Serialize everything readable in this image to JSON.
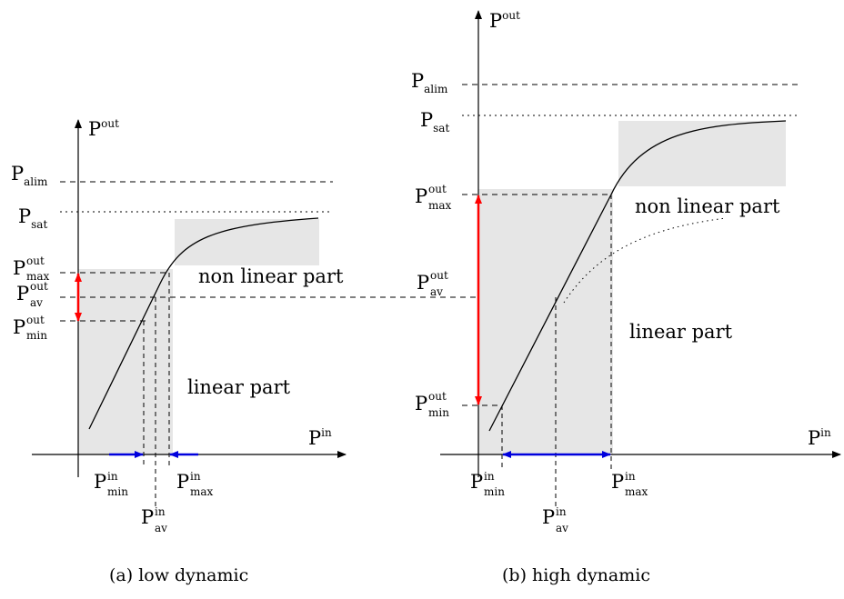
{
  "figure": {
    "captions": {
      "a": "(a) low dynamic",
      "b": "(b) high dynamic"
    },
    "axis_labels": {
      "y": {
        "base": "P",
        "sup": "out"
      },
      "x": {
        "base": "P",
        "sup": "in"
      }
    },
    "levels": {
      "alim": {
        "base": "P",
        "sub": "alim"
      },
      "sat": {
        "base": "P",
        "sub": "sat"
      },
      "max_out": {
        "base": "P",
        "sup": "out",
        "sub": "max"
      },
      "av_out": {
        "base": "P",
        "sup": "out",
        "sub": "av"
      },
      "min_out": {
        "base": "P",
        "sup": "out",
        "sub": "min"
      },
      "min_in": {
        "base": "P",
        "sup": "in",
        "sub": "min"
      },
      "av_in": {
        "base": "P",
        "sup": "in",
        "sub": "av"
      },
      "max_in": {
        "base": "P",
        "sup": "in",
        "sub": "max"
      }
    },
    "regions": {
      "linear": "linear part",
      "nonlinear": "non linear part"
    },
    "colors": {
      "out_range_arrow": "#ff0000",
      "in_range_arrow": "#0000dd",
      "region_fill": "#e6e6e6"
    }
  }
}
